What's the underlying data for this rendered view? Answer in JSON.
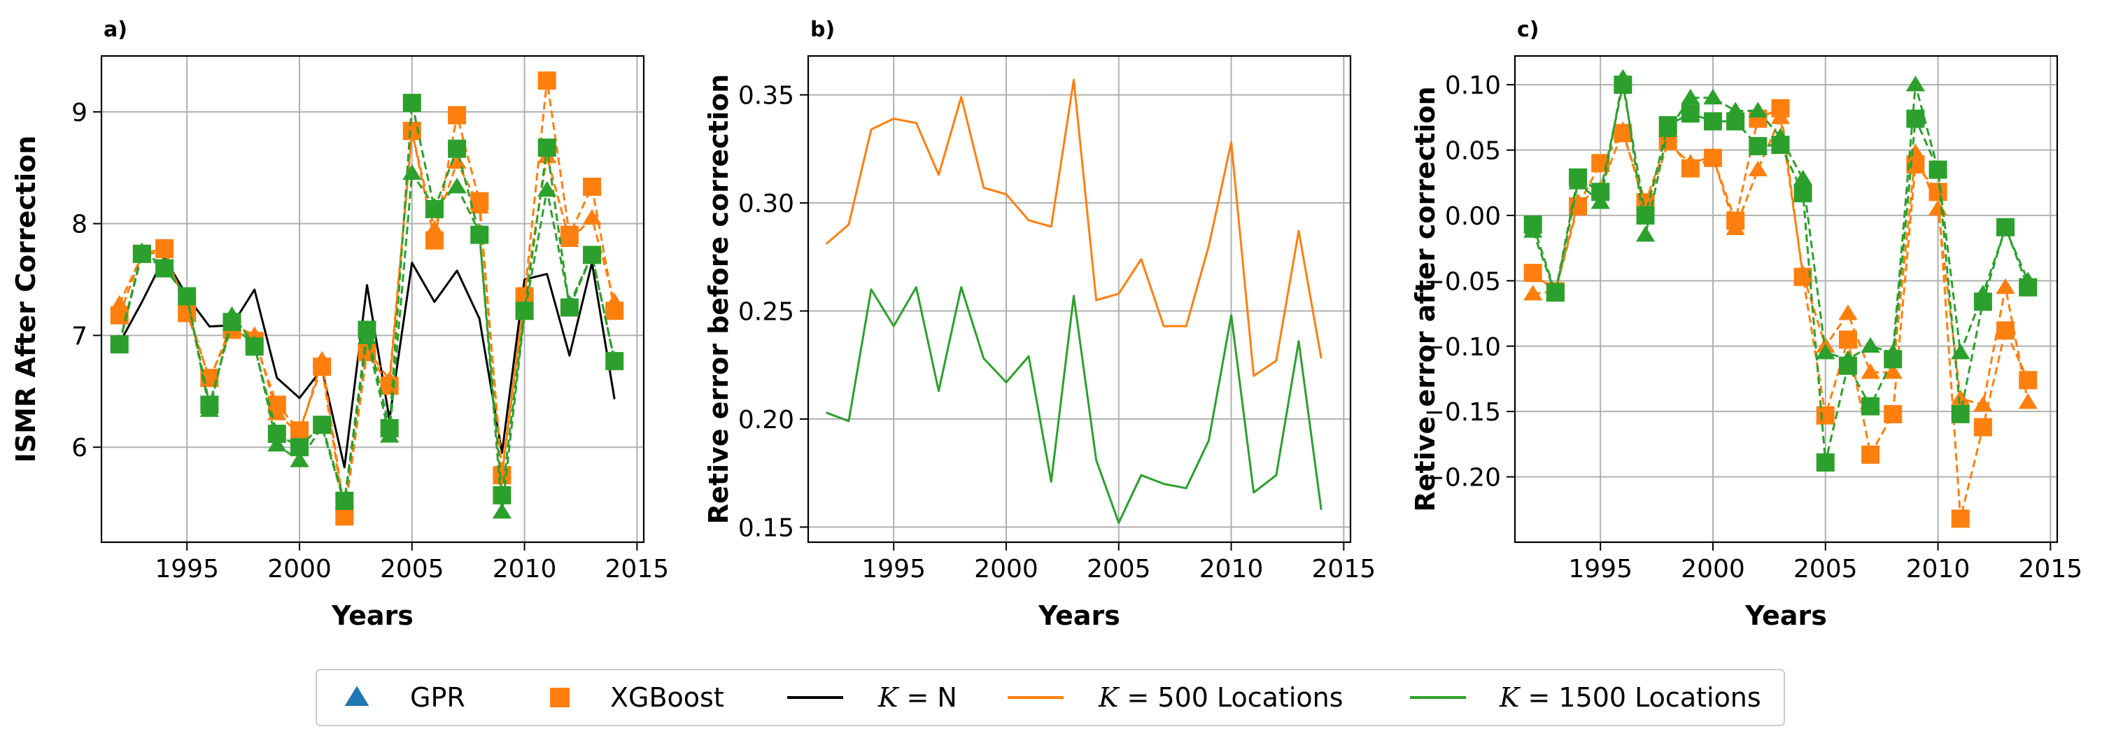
{
  "legend": {
    "items": [
      {
        "label": "GPR",
        "marker": "triangle",
        "color": "#1f77b4"
      },
      {
        "label": "XGBoost",
        "marker": "square",
        "color": "#ff7f0e"
      },
      {
        "label_italic": "K",
        "label_rest": " = N",
        "line": true,
        "color": "#000000"
      },
      {
        "label_italic": "K",
        "label_rest": " = 500 Locations",
        "line": true,
        "color": "#ff7f0e"
      },
      {
        "label_italic": "K",
        "label_rest": " = 1500 Locations",
        "line": true,
        "color": "#2ca02c"
      }
    ]
  },
  "colors": {
    "black": "#000000",
    "orange": "#ff7f0e",
    "green": "#2ca02c",
    "blue": "#1f77b4"
  },
  "chart_data": [
    {
      "type": "line",
      "panel_label": "a)",
      "xlabel": "Years",
      "ylabel": "ISMR After Correction",
      "xlim": [
        1991.2,
        2015.3
      ],
      "ylim": [
        5.15,
        9.5
      ],
      "xticks": [
        1995,
        2000,
        2005,
        2010,
        2015
      ],
      "yticks": [
        6,
        7,
        8,
        9
      ],
      "grid": true,
      "x": [
        1992,
        1993,
        1994,
        1995,
        1996,
        1997,
        1998,
        1999,
        2000,
        2001,
        2002,
        2003,
        2004,
        2005,
        2006,
        2007,
        2008,
        2009,
        2010,
        2011,
        2012,
        2013,
        2014
      ],
      "series": [
        {
          "name": "K = N",
          "model": "",
          "color": "#000000",
          "style": "solid",
          "marker": "none",
          "values": [
            6.93,
            7.3,
            7.7,
            7.35,
            7.08,
            7.09,
            7.41,
            6.62,
            6.44,
            6.7,
            5.82,
            7.45,
            6.25,
            7.65,
            7.3,
            7.58,
            7.15,
            5.95,
            7.5,
            7.55,
            6.82,
            7.65,
            6.43
          ]
        },
        {
          "name": "GPR, K = 500 Locations",
          "model": "GPR",
          "color": "#ff7f0e",
          "style": "dashed",
          "marker": "triangle",
          "values": [
            7.28,
            7.72,
            7.75,
            7.25,
            6.6,
            7.1,
            7.0,
            6.3,
            6.12,
            6.78,
            5.42,
            6.88,
            6.6,
            8.82,
            7.95,
            8.55,
            8.15,
            5.78,
            7.35,
            8.6,
            7.85,
            8.05,
            7.3
          ]
        },
        {
          "name": "XGBoost, K = 500 Locations",
          "model": "XGBoost",
          "color": "#ff7f0e",
          "style": "dashed",
          "marker": "square",
          "values": [
            7.18,
            7.73,
            7.78,
            7.2,
            6.62,
            7.05,
            6.95,
            6.38,
            6.15,
            6.72,
            5.38,
            6.85,
            6.55,
            8.83,
            7.85,
            8.97,
            8.2,
            5.75,
            7.35,
            9.28,
            7.9,
            8.33,
            7.22
          ]
        },
        {
          "name": "GPR, K = 1500 Locations",
          "model": "GPR",
          "color": "#2ca02c",
          "style": "dashed",
          "marker": "triangle",
          "values": [
            6.93,
            7.75,
            7.62,
            7.35,
            6.33,
            7.18,
            6.92,
            6.02,
            5.88,
            6.18,
            5.5,
            6.98,
            6.1,
            8.45,
            8.15,
            8.33,
            7.92,
            5.42,
            7.2,
            8.3,
            7.28,
            7.72,
            6.78
          ]
        },
        {
          "name": "XGBoost, K = 1500 Locations",
          "model": "XGBoost",
          "color": "#2ca02c",
          "style": "dashed",
          "marker": "square",
          "values": [
            6.92,
            7.73,
            7.6,
            7.35,
            6.38,
            7.12,
            6.9,
            6.12,
            6.0,
            6.2,
            5.52,
            7.05,
            6.17,
            9.08,
            8.13,
            8.67,
            7.9,
            5.57,
            7.22,
            8.68,
            7.25,
            7.72,
            6.77
          ]
        }
      ]
    },
    {
      "type": "line",
      "panel_label": "b)",
      "xlabel": "Years",
      "ylabel": "Retive error before correction",
      "xlim": [
        1991.2,
        2015.3
      ],
      "ylim": [
        0.143,
        0.368
      ],
      "xticks": [
        1995,
        2000,
        2005,
        2010,
        2015
      ],
      "yticks": [
        0.15,
        0.2,
        0.25,
        0.3,
        0.35
      ],
      "ytick_labels": [
        "0.15",
        "0.20",
        "0.25",
        "0.30",
        "0.35"
      ],
      "grid": true,
      "x": [
        1992,
        1993,
        1994,
        1995,
        1996,
        1997,
        1998,
        1999,
        2000,
        2001,
        2002,
        2003,
        2004,
        2005,
        2006,
        2007,
        2008,
        2009,
        2010,
        2011,
        2012,
        2013,
        2014
      ],
      "series": [
        {
          "name": "K = 500 Locations",
          "model": "",
          "color": "#ff7f0e",
          "style": "solid",
          "marker": "none",
          "values": [
            0.281,
            0.29,
            0.334,
            0.339,
            0.337,
            0.313,
            0.349,
            0.307,
            0.304,
            0.292,
            0.289,
            0.357,
            0.255,
            0.258,
            0.274,
            0.243,
            0.243,
            0.28,
            0.328,
            0.22,
            0.227,
            0.287,
            0.228
          ]
        },
        {
          "name": "K = 1500 Locations",
          "model": "",
          "color": "#2ca02c",
          "style": "solid",
          "marker": "none",
          "values": [
            0.203,
            0.199,
            0.26,
            0.243,
            0.261,
            0.213,
            0.261,
            0.228,
            0.217,
            0.229,
            0.171,
            0.257,
            0.181,
            0.152,
            0.174,
            0.17,
            0.168,
            0.19,
            0.248,
            0.166,
            0.174,
            0.236,
            0.158
          ]
        }
      ]
    },
    {
      "type": "line",
      "panel_label": "c)",
      "xlabel": "Years",
      "ylabel": "Retive error after correction",
      "xlim": [
        1991.2,
        2015.3
      ],
      "ylim": [
        -0.25,
        0.122
      ],
      "xticks": [
        1995,
        2000,
        2005,
        2010,
        2015
      ],
      "yticks": [
        -0.2,
        -0.15,
        -0.1,
        -0.05,
        0.0,
        0.05,
        0.1
      ],
      "ytick_labels": [
        "−0.20",
        "−0.15",
        "−0.10",
        "−0.05",
        "0.00",
        "0.05",
        "0.10"
      ],
      "grid": true,
      "x": [
        1992,
        1993,
        1994,
        1995,
        1996,
        1997,
        1998,
        1999,
        2000,
        2001,
        2002,
        2003,
        2004,
        2005,
        2006,
        2007,
        2008,
        2009,
        2010,
        2011,
        2012,
        2013,
        2014
      ],
      "series": [
        {
          "name": "GPR, K = 500 Locations",
          "model": "GPR",
          "color": "#ff7f0e",
          "style": "dashed",
          "marker": "triangle",
          "values": [
            -0.06,
            -0.058,
            0.01,
            0.02,
            0.065,
            0.005,
            0.055,
            0.04,
            0.045,
            -0.01,
            0.035,
            0.075,
            -0.045,
            -0.1,
            -0.075,
            -0.12,
            -0.12,
            0.048,
            0.005,
            -0.14,
            -0.145,
            -0.055,
            -0.143
          ]
        },
        {
          "name": "XGBoost, K = 500 Locations",
          "model": "XGBoost",
          "color": "#ff7f0e",
          "style": "dashed",
          "marker": "square",
          "values": [
            -0.044,
            -0.058,
            0.007,
            0.04,
            0.063,
            0.01,
            0.058,
            0.036,
            0.044,
            -0.004,
            0.074,
            0.082,
            -0.047,
            -0.153,
            -0.095,
            -0.183,
            -0.152,
            0.039,
            0.018,
            -0.232,
            -0.162,
            -0.088,
            -0.126
          ]
        },
        {
          "name": "GPR, K = 1500 Locations",
          "model": "GPR",
          "color": "#2ca02c",
          "style": "dashed",
          "marker": "triangle",
          "values": [
            -0.012,
            -0.06,
            0.025,
            0.01,
            0.105,
            -0.015,
            0.065,
            0.09,
            0.09,
            0.08,
            0.08,
            0.06,
            0.028,
            -0.105,
            -0.11,
            -0.1,
            -0.105,
            0.1,
            0.035,
            -0.105,
            -0.06,
            -0.01,
            -0.05
          ]
        },
        {
          "name": "XGBoost, K = 1500 Locations",
          "model": "XGBoost",
          "color": "#2ca02c",
          "style": "dashed",
          "marker": "square",
          "values": [
            -0.007,
            -0.059,
            0.029,
            0.018,
            0.1,
            0.0,
            0.069,
            0.078,
            0.072,
            0.072,
            0.053,
            0.054,
            0.017,
            -0.189,
            -0.115,
            -0.146,
            -0.11,
            0.074,
            0.035,
            -0.152,
            -0.066,
            -0.009,
            -0.055
          ]
        }
      ]
    }
  ]
}
